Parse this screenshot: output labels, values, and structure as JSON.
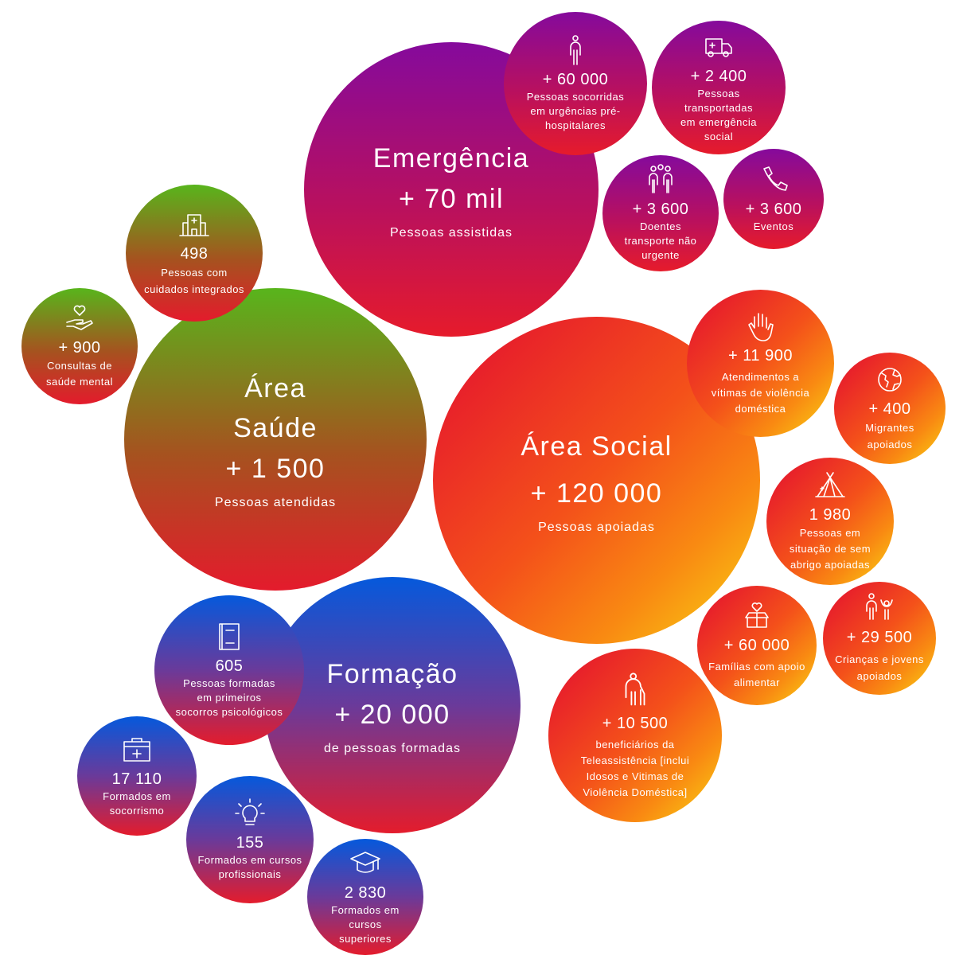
{
  "colors": {
    "emergencia": [
      "#850a9c",
      "#e61b2b"
    ],
    "saude": [
      "#58b51c",
      "#e41b2c"
    ],
    "social": [
      "#e8212a",
      "#f9c713"
    ],
    "formacao": [
      "#0559dc",
      "#e41c2c"
    ]
  },
  "emergencia": {
    "title": "Emergência",
    "value": "+ 70 mil",
    "desc": "Pessoas assistidas",
    "items": [
      {
        "icon": "person-icon",
        "value": "+ 60 000",
        "desc": "Pessoas socorridas em urgências pré-hospitalares"
      },
      {
        "icon": "ambulance-icon",
        "value": "+ 2 400",
        "desc": "Pessoas transportadas em emergência social"
      },
      {
        "icon": "group-icon",
        "value": "+ 3 600",
        "desc": "Doentes transporte não urgente"
      },
      {
        "icon": "phone-icon",
        "value": "+ 3 600",
        "desc": "Eventos"
      }
    ]
  },
  "saude": {
    "title": "Área Saúde",
    "value": "+ 1 500",
    "desc": "Pessoas atendidas",
    "items": [
      {
        "icon": "clinic-icon",
        "value": "498",
        "desc": "Pessoas com cuidados integrados"
      },
      {
        "icon": "heart-hand-icon",
        "value": "+ 900",
        "desc": "Consultas de saúde mental"
      }
    ]
  },
  "social": {
    "title": "Área Social",
    "value": "+ 120 000",
    "desc": "Pessoas apoiadas",
    "items": [
      {
        "icon": "raised-hand-icon",
        "value": "+ 11 900",
        "desc": "Atendimentos a vítimas de violência doméstica"
      },
      {
        "icon": "globe-icon",
        "value": "+ 400",
        "desc": "Migrantes apoiados"
      },
      {
        "icon": "tent-icon",
        "value": "1 980",
        "desc": "Pessoas em situação de sem abrigo apoiadas"
      },
      {
        "icon": "adult-child-icon",
        "value": "+ 29 500",
        "desc": "Crianças e jovens apoiados"
      },
      {
        "icon": "heart-box-icon",
        "value": "+ 60 000",
        "desc": "Famílias com apoio alimentar"
      },
      {
        "icon": "elderly-icon",
        "value": "+ 10 500",
        "desc": "beneficiários da Teleassistência [inclui Idosos e Vitimas de Violência Doméstica]"
      }
    ]
  },
  "formacao": {
    "title": "Formação",
    "value": "+ 20 000",
    "desc": "de pessoas formadas",
    "items": [
      {
        "icon": "book-icon",
        "value": "605",
        "desc": "Pessoas formadas em primeiros socorros psicológicos"
      },
      {
        "icon": "first-aid-kit-icon",
        "value": "17 110",
        "desc": "Formados em socorrismo"
      },
      {
        "icon": "lightbulb-icon",
        "value": "155",
        "desc": "Formados em cursos profissionais"
      },
      {
        "icon": "graduation-cap-icon",
        "value": "2 830",
        "desc": "Formados em cursos superiores"
      }
    ]
  }
}
